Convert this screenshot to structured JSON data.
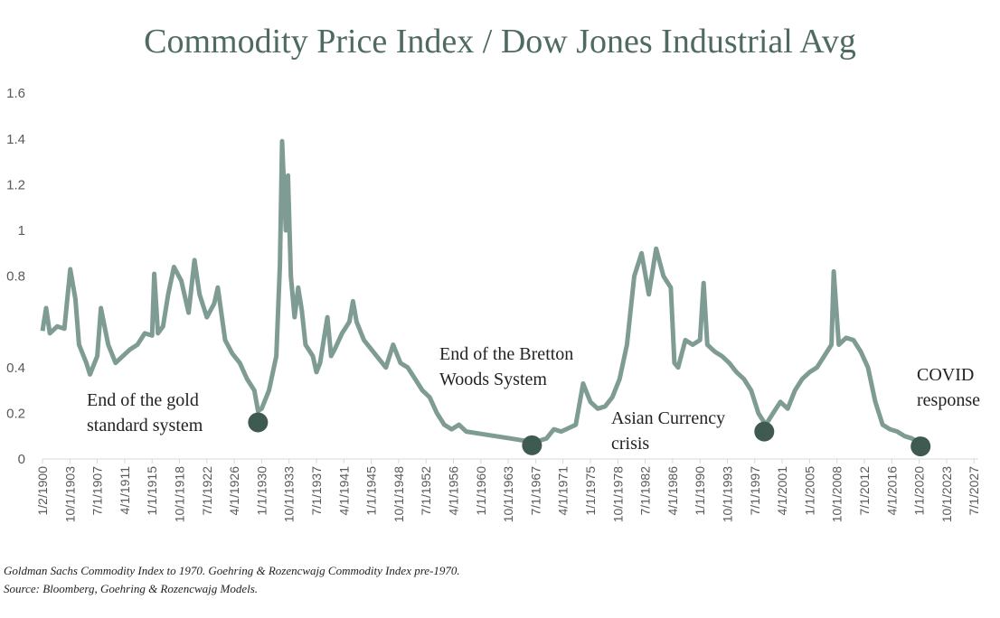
{
  "chart_data": {
    "type": "line",
    "title": "Commodity Price Index / Dow Jones Industrial Avg",
    "xlabel": "",
    "ylabel": "",
    "ylim": [
      0,
      1.6
    ],
    "y_ticks": [
      "0",
      "0.2",
      "0.4",
      "0.8",
      "1",
      "1.2",
      "1.4",
      "1.6"
    ],
    "x_ticks": [
      "1/2/1900",
      "10/1/1903",
      "7/1/1907",
      "4/1/1911",
      "1/1/1915",
      "10/1/1918",
      "7/1/1922",
      "4/1/1926",
      "1/1/1930",
      "10/1/1933",
      "7/1/1937",
      "4/1/1941",
      "1/1/1945",
      "10/1/1948",
      "7/1/1952",
      "4/1/1956",
      "1/1/1960",
      "10/1/1963",
      "7/1/1967",
      "4/1/1971",
      "1/1/1975",
      "10/1/1978",
      "7/1/1982",
      "4/1/1986",
      "1/1/1990",
      "10/1/1993",
      "7/1/1997",
      "4/1/2001",
      "1/1/2005",
      "10/1/2008",
      "7/1/2012",
      "4/1/2016",
      "1/1/2020",
      "10/1/2023",
      "7/1/2027"
    ],
    "xlim": [
      1900,
      2027.5
    ],
    "grid": false,
    "line_color": "#7f9c94",
    "marker_color": "#3f5a50",
    "series": [
      {
        "x": [
          1900,
          1900.5,
          1901,
          1902,
          1903,
          1903.8,
          1904.5,
          1905,
          1906,
          1906.5,
          1907.5,
          1908,
          1909,
          1910,
          1911,
          1912,
          1913,
          1914,
          1915,
          1915.3,
          1915.8,
          1916.5,
          1917.2,
          1918,
          1919,
          1920,
          1920.8,
          1921.5,
          1922.5,
          1923.5,
          1924,
          1925,
          1926,
          1927,
          1928,
          1929,
          1929.5,
          1930,
          1931,
          1932,
          1932.5,
          1932.8,
          1933.3,
          1933.6,
          1934,
          1934.5,
          1935,
          1935.5,
          1936,
          1937,
          1937.5,
          1938,
          1939,
          1939.5,
          1940,
          1941,
          1942,
          1942.5,
          1943,
          1944,
          1945,
          1946,
          1947,
          1948,
          1949,
          1950,
          1951,
          1952,
          1953,
          1954,
          1955,
          1956,
          1957,
          1958,
          1960,
          1962,
          1964,
          1966,
          1967,
          1969,
          1970,
          1971,
          1973,
          1974,
          1975,
          1976,
          1977,
          1978,
          1979,
          1980,
          1981,
          1982,
          1983,
          1984,
          1985,
          1986,
          1986.5,
          1987,
          1988,
          1989,
          1990,
          1990.5,
          1991,
          1992,
          1993,
          1994,
          1995,
          1996,
          1997,
          1998,
          1999,
          2000,
          2001,
          2002,
          2003,
          2004,
          2005,
          2006,
          2007,
          2008,
          2008.3,
          2009,
          2010,
          2011,
          2012,
          2013,
          2014,
          2015,
          2016,
          2017,
          2018,
          2019,
          2020
        ],
        "y": [
          0.56,
          0.66,
          0.55,
          0.58,
          0.57,
          0.83,
          0.7,
          0.5,
          0.42,
          0.37,
          0.45,
          0.66,
          0.5,
          0.42,
          0.45,
          0.48,
          0.5,
          0.55,
          0.54,
          0.81,
          0.55,
          0.58,
          0.72,
          0.84,
          0.78,
          0.64,
          0.87,
          0.72,
          0.62,
          0.68,
          0.75,
          0.52,
          0.46,
          0.42,
          0.35,
          0.3,
          0.21,
          0.22,
          0.3,
          0.45,
          0.85,
          1.39,
          1.0,
          1.24,
          0.8,
          0.62,
          0.75,
          0.65,
          0.5,
          0.45,
          0.38,
          0.42,
          0.62,
          0.45,
          0.48,
          0.55,
          0.6,
          0.69,
          0.6,
          0.52,
          0.48,
          0.44,
          0.4,
          0.5,
          0.42,
          0.4,
          0.35,
          0.3,
          0.27,
          0.2,
          0.15,
          0.13,
          0.15,
          0.12,
          0.11,
          0.1,
          0.09,
          0.08,
          0.07,
          0.09,
          0.13,
          0.12,
          0.15,
          0.33,
          0.25,
          0.22,
          0.23,
          0.27,
          0.35,
          0.5,
          0.8,
          0.9,
          0.72,
          0.92,
          0.8,
          0.75,
          0.42,
          0.4,
          0.52,
          0.5,
          0.52,
          0.77,
          0.5,
          0.47,
          0.45,
          0.42,
          0.38,
          0.35,
          0.3,
          0.2,
          0.15,
          0.2,
          0.25,
          0.22,
          0.3,
          0.35,
          0.38,
          0.4,
          0.45,
          0.5,
          0.82,
          0.5,
          0.53,
          0.52,
          0.47,
          0.4,
          0.25,
          0.15,
          0.13,
          0.12,
          0.1,
          0.09,
          0.07
        ]
      }
    ],
    "annotations": [
      {
        "lines": [
          "End of the gold",
          "standard system"
        ],
        "x": 1929.5,
        "y": 0.16
      },
      {
        "lines": [
          "End of the Bretton",
          "Woods System"
        ],
        "x": 1967,
        "y": 0.06
      },
      {
        "lines": [
          "Asian Currency",
          "crisis"
        ],
        "x": 1998.8,
        "y": 0.12
      },
      {
        "lines": [
          "COVID",
          "response"
        ],
        "x": 2020.2,
        "y": 0.055
      }
    ]
  },
  "footnote": {
    "line1": "Goldman Sachs Commodity Index to 1970.  Goehring & Rozencwajg Commodity Index pre-1970.",
    "line2": "Source: Bloomberg, Goehring & Rozencwajg Models."
  }
}
